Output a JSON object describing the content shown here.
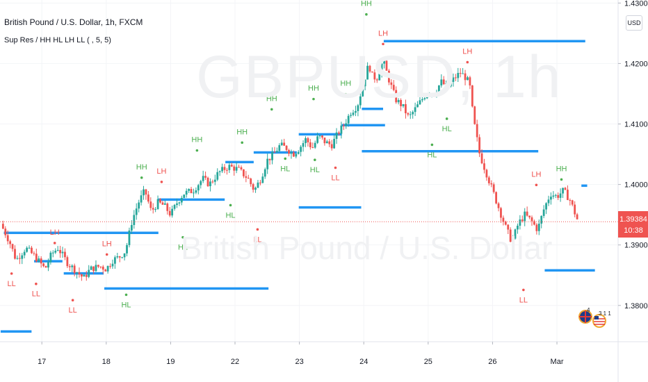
{
  "header": {
    "title": "British Pound / U.S. Dollar, 1h, FXCM",
    "indicator": "Sup Res / HH HL LH LL ( , 5, 5)",
    "currency_button": "USD"
  },
  "watermark": {
    "symbol": "GBPUSD, 1h",
    "name": "British Pound / U.S. Dollar"
  },
  "price_tag": {
    "value": "1.39384",
    "countdown": "10:38",
    "color": "#ef5350"
  },
  "badges": {
    "count_a": "4",
    "count_b": "3 1 1"
  },
  "colors": {
    "up": "#26a69a",
    "down": "#ef5350",
    "level_line": "#2196f3",
    "hh_hl_label": "#4caf50",
    "lh_ll_label": "#ef5350"
  },
  "chart_data": {
    "type": "candlestick",
    "ylim": [
      1.374,
      1.4305
    ],
    "y_ticks": [
      "1.43000",
      "1.42000",
      "1.41000",
      "1.40000",
      "1.39000",
      "1.38000"
    ],
    "y_tick_values": [
      1.43,
      1.42,
      1.41,
      1.4,
      1.39,
      1.38
    ],
    "x_ticks": [
      "17",
      "18",
      "19",
      "22",
      "23",
      "24",
      "25",
      "26",
      "Mar"
    ],
    "x_tick_positions": [
      1,
      2,
      3,
      4,
      5,
      6,
      7,
      8,
      9
    ],
    "xlim": [
      0.35,
      9.95
    ],
    "current_price": 1.39384,
    "close_path": [
      [
        0.36,
        1.3935
      ],
      [
        0.5,
        1.3905
      ],
      [
        0.6,
        1.3875
      ],
      [
        0.75,
        1.3895
      ],
      [
        0.9,
        1.388
      ],
      [
        1.05,
        1.386
      ],
      [
        1.15,
        1.3885
      ],
      [
        1.25,
        1.3895
      ],
      [
        1.4,
        1.387
      ],
      [
        1.55,
        1.3855
      ],
      [
        1.65,
        1.3845
      ],
      [
        1.75,
        1.386
      ],
      [
        1.9,
        1.3865
      ],
      [
        2.0,
        1.386
      ],
      [
        2.1,
        1.3875
      ],
      [
        2.2,
        1.388
      ],
      [
        2.3,
        1.389
      ],
      [
        2.4,
        1.394
      ],
      [
        2.5,
        1.397
      ],
      [
        2.6,
        1.399
      ],
      [
        2.7,
        1.3955
      ],
      [
        2.8,
        1.397
      ],
      [
        2.9,
        1.3965
      ],
      [
        3.0,
        1.395
      ],
      [
        3.1,
        1.397
      ],
      [
        3.2,
        1.3985
      ],
      [
        3.35,
        1.399
      ],
      [
        3.5,
        1.401
      ],
      [
        3.6,
        1.4
      ],
      [
        3.75,
        1.402
      ],
      [
        3.9,
        1.403
      ],
      [
        4.05,
        1.4025
      ],
      [
        4.2,
        1.401
      ],
      [
        4.3,
        1.399
      ],
      [
        4.4,
        1.401
      ],
      [
        4.5,
        1.404
      ],
      [
        4.6,
        1.405
      ],
      [
        4.7,
        1.4065
      ],
      [
        4.8,
        1.406
      ],
      [
        4.9,
        1.405
      ],
      [
        5.0,
        1.406
      ],
      [
        5.1,
        1.4075
      ],
      [
        5.2,
        1.406
      ],
      [
        5.3,
        1.408
      ],
      [
        5.4,
        1.407
      ],
      [
        5.5,
        1.4065
      ],
      [
        5.6,
        1.4085
      ],
      [
        5.7,
        1.41
      ],
      [
        5.8,
        1.412
      ],
      [
        5.9,
        1.413
      ],
      [
        6.0,
        1.417
      ],
      [
        6.08,
        1.42
      ],
      [
        6.12,
        1.418
      ],
      [
        6.2,
        1.4175
      ],
      [
        6.3,
        1.4205
      ],
      [
        6.4,
        1.417
      ],
      [
        6.5,
        1.414
      ],
      [
        6.6,
        1.413
      ],
      [
        6.7,
        1.411
      ],
      [
        6.8,
        1.4125
      ],
      [
        6.9,
        1.414
      ],
      [
        7.0,
        1.4155
      ],
      [
        7.1,
        1.415
      ],
      [
        7.2,
        1.417
      ],
      [
        7.3,
        1.416
      ],
      [
        7.4,
        1.4175
      ],
      [
        7.5,
        1.4185
      ],
      [
        7.6,
        1.4175
      ],
      [
        7.65,
        1.416
      ],
      [
        7.7,
        1.411
      ],
      [
        7.8,
        1.405
      ],
      [
        7.9,
        1.402
      ],
      [
        8.0,
        1.399
      ],
      [
        8.1,
        1.396
      ],
      [
        8.2,
        1.393
      ],
      [
        8.3,
        1.3905
      ],
      [
        8.4,
        1.3935
      ],
      [
        8.5,
        1.395
      ],
      [
        8.6,
        1.394
      ],
      [
        8.7,
        1.3925
      ],
      [
        8.8,
        1.396
      ],
      [
        8.9,
        1.3985
      ],
      [
        9.0,
        1.398
      ],
      [
        9.1,
        1.399
      ],
      [
        9.2,
        1.3975
      ],
      [
        9.33,
        1.3938
      ]
    ],
    "levels": [
      {
        "x0": 0.36,
        "x1": 0.84,
        "y": 1.3757
      },
      {
        "x0": 0.41,
        "x1": 2.81,
        "y": 1.392
      },
      {
        "x0": 0.88,
        "x1": 1.32,
        "y": 1.3873
      },
      {
        "x0": 1.34,
        "x1": 1.96,
        "y": 1.3853
      },
      {
        "x0": 1.97,
        "x1": 4.52,
        "y": 1.3828
      },
      {
        "x0": 2.81,
        "x1": 3.84,
        "y": 1.3975
      },
      {
        "x0": 3.85,
        "x1": 4.29,
        "y": 1.4037
      },
      {
        "x0": 4.29,
        "x1": 4.96,
        "y": 1.4053
      },
      {
        "x0": 4.99,
        "x1": 5.96,
        "y": 1.3962
      },
      {
        "x0": 4.99,
        "x1": 5.66,
        "y": 1.4083
      },
      {
        "x0": 5.66,
        "x1": 6.33,
        "y": 1.4098
      },
      {
        "x0": 5.97,
        "x1": 6.3,
        "y": 1.4125
      },
      {
        "x0": 5.97,
        "x1": 8.71,
        "y": 1.4055
      },
      {
        "x0": 6.31,
        "x1": 9.44,
        "y": 1.4237
      },
      {
        "x0": 8.81,
        "x1": 9.59,
        "y": 1.3858
      },
      {
        "x0": 9.38,
        "x1": 9.47,
        "y": 1.3998
      }
    ],
    "pivot_labels": [
      {
        "text": "LL",
        "x": 0.53,
        "y": 1.3832,
        "kind": "low"
      },
      {
        "text": "LL",
        "x": 0.91,
        "y": 1.3815,
        "kind": "low"
      },
      {
        "text": "LH",
        "x": 1.2,
        "y": 1.3917,
        "kind": "high"
      },
      {
        "text": "LL",
        "x": 1.48,
        "y": 1.3788,
        "kind": "low"
      },
      {
        "text": "LH",
        "x": 2.01,
        "y": 1.3898,
        "kind": "high"
      },
      {
        "text": "HL",
        "x": 2.31,
        "y": 1.3797,
        "kind": "low"
      },
      {
        "text": "HH",
        "x": 2.55,
        "y": 1.4025,
        "kind": "high"
      },
      {
        "text": "LH",
        "x": 2.86,
        "y": 1.4018,
        "kind": "high"
      },
      {
        "text": "HL",
        "x": 3.19,
        "y": 1.3892,
        "kind": "low"
      },
      {
        "text": "HH",
        "x": 3.41,
        "y": 1.407,
        "kind": "high"
      },
      {
        "text": "HL",
        "x": 3.93,
        "y": 1.3945,
        "kind": "low"
      },
      {
        "text": "HH",
        "x": 4.11,
        "y": 1.4083,
        "kind": "high"
      },
      {
        "text": "LL",
        "x": 4.35,
        "y": 1.3905,
        "kind": "low"
      },
      {
        "text": "HH",
        "x": 4.57,
        "y": 1.4138,
        "kind": "high"
      },
      {
        "text": "HL",
        "x": 4.78,
        "y": 1.4022,
        "kind": "low"
      },
      {
        "text": "HH",
        "x": 5.22,
        "y": 1.4155,
        "kind": "high"
      },
      {
        "text": "HL",
        "x": 5.24,
        "y": 1.402,
        "kind": "low"
      },
      {
        "text": "LL",
        "x": 5.56,
        "y": 1.4007,
        "kind": "low"
      },
      {
        "text": "HH",
        "x": 5.72,
        "y": 1.4163,
        "kind": "high"
      },
      {
        "text": "HH",
        "x": 6.04,
        "y": 1.4295,
        "kind": "high"
      },
      {
        "text": "LH",
        "x": 6.3,
        "y": 1.4246,
        "kind": "high"
      },
      {
        "text": "HL",
        "x": 7.06,
        "y": 1.4045,
        "kind": "low"
      },
      {
        "text": "LH",
        "x": 7.61,
        "y": 1.4216,
        "kind": "high"
      },
      {
        "text": "HL",
        "x": 7.29,
        "y": 1.4088,
        "kind": "low"
      },
      {
        "text": "LH",
        "x": 8.68,
        "y": 1.4013,
        "kind": "high"
      },
      {
        "text": "LL",
        "x": 8.48,
        "y": 1.3805,
        "kind": "low"
      },
      {
        "text": "HH",
        "x": 9.07,
        "y": 1.4022,
        "kind": "high"
      }
    ]
  }
}
